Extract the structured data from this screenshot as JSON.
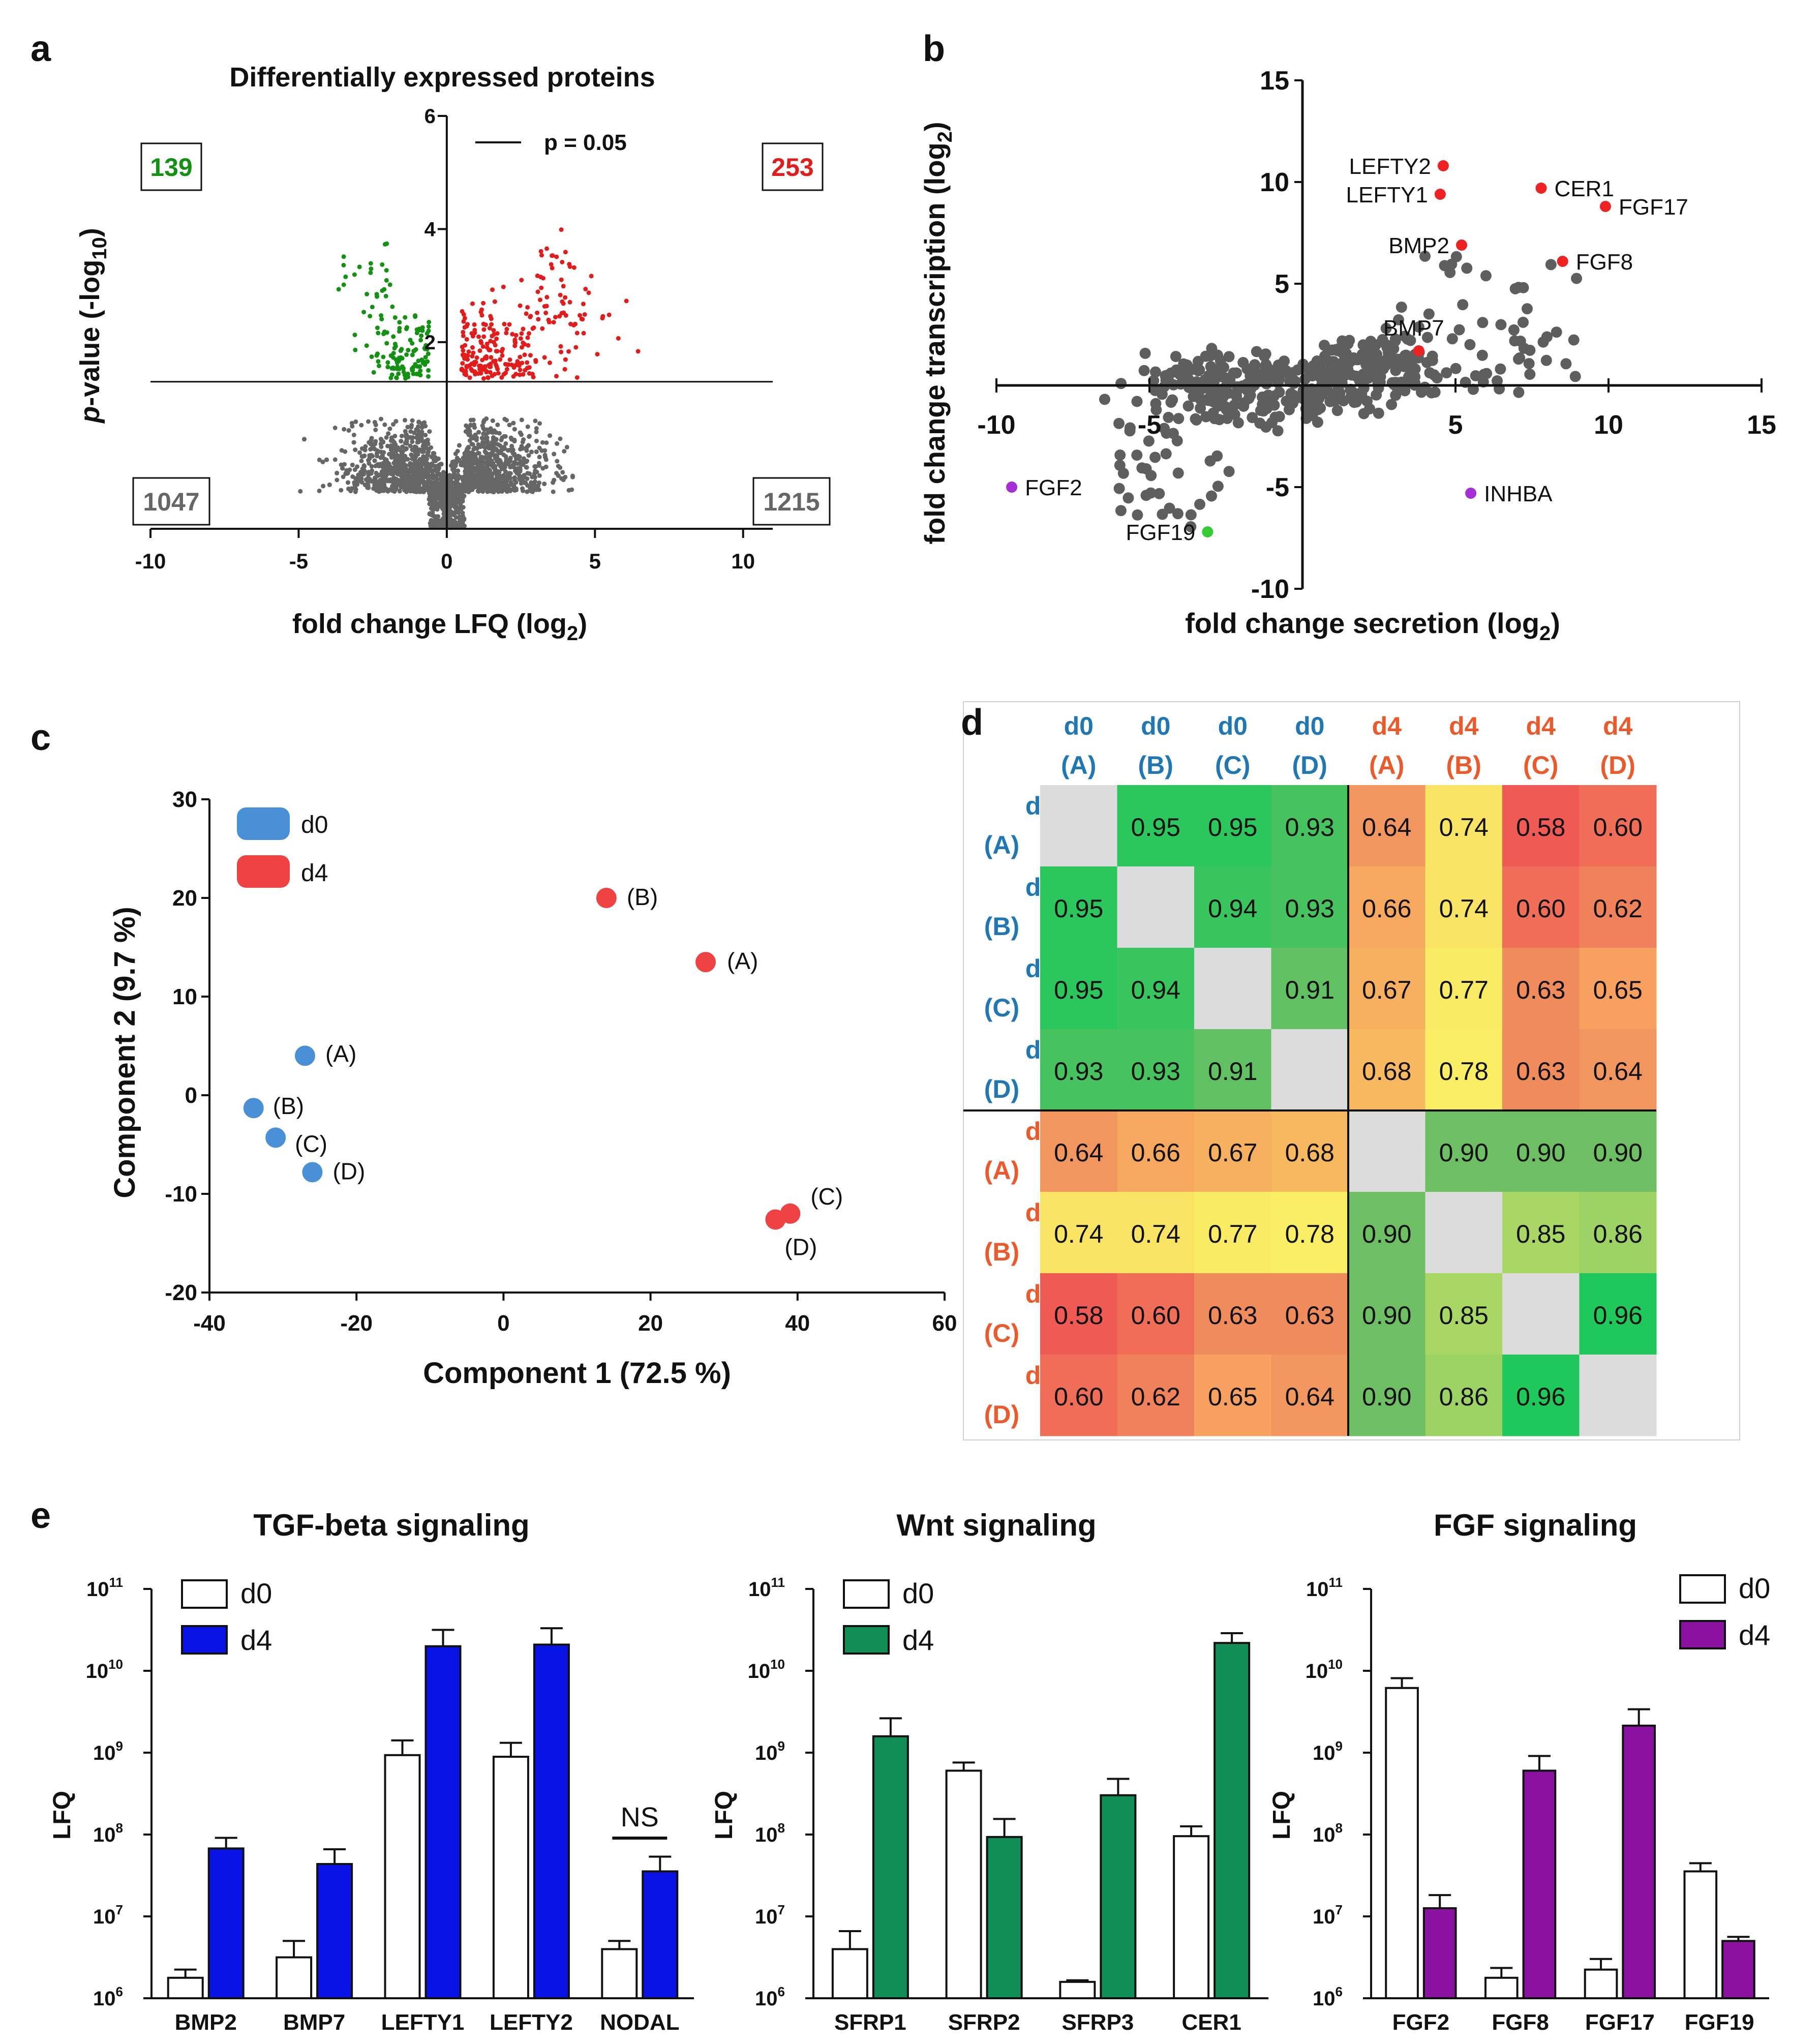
{
  "colors": {
    "green": "#129112",
    "red": "#e31b1b",
    "grey": "#666666",
    "blue_d0": "#4a90d6",
    "red_d4": "#ef4343",
    "tgf": "#0a13e6",
    "wnt": "#0f8f56",
    "fgf": "#8b11a0",
    "d0_label": "#1f77b4",
    "d4_label": "#ec5a2b"
  },
  "chart_data": [
    {
      "panel": "a",
      "type": "scatter",
      "title": "Differentially expressed proteins",
      "xlabel": "fold change LFQ (log",
      "xlabel_sub": "2",
      "xlabel_end": ")",
      "ylabel_p": "p",
      "ylabel": "-value (-log",
      "ylabel_sub": "10",
      "ylabel_end": ")",
      "xlim": [
        -10,
        11
      ],
      "ylim": [
        -1.3,
        6
      ],
      "xticks": [
        "-10",
        "-5",
        "0",
        "5",
        "10"
      ],
      "yticks": [
        "2",
        "4",
        "6"
      ],
      "threshold_label": "p = 0.05",
      "threshold_y": 1.3,
      "counts": {
        "up_sig": "253",
        "down_sig": "139",
        "down_ns": "1047",
        "up_ns": "1215"
      }
    },
    {
      "panel": "b",
      "type": "scatter",
      "xlabel": "fold change secretion (log",
      "xlabel_sub": "2",
      "xlabel_end": ")",
      "ylabel": "fold change transcription (log",
      "ylabel_sub": "2",
      "ylabel_end": ")",
      "xlim": [
        -10,
        15
      ],
      "ylim": [
        -10,
        15
      ],
      "xticks": [
        "-10",
        "-5",
        "5",
        "10",
        "15"
      ],
      "yticks": [
        "-10",
        "-5",
        "5",
        "10",
        "15"
      ],
      "highlighted": [
        {
          "label": "LEFTY2",
          "x": 4.6,
          "y": 10.8,
          "color": "red",
          "side": "left"
        },
        {
          "label": "LEFTY1",
          "x": 4.5,
          "y": 9.4,
          "color": "red",
          "side": "left"
        },
        {
          "label": "CER1",
          "x": 7.8,
          "y": 9.7,
          "color": "red",
          "side": "right"
        },
        {
          "label": "FGF17",
          "x": 9.9,
          "y": 8.8,
          "color": "red",
          "side": "right"
        },
        {
          "label": "BMP2",
          "x": 5.2,
          "y": 6.9,
          "color": "red",
          "side": "left"
        },
        {
          "label": "FGF8",
          "x": 8.5,
          "y": 6.1,
          "color": "red",
          "side": "right"
        },
        {
          "label": "BMP7",
          "x": 3.8,
          "y": 1.7,
          "color": "red",
          "side": "above"
        },
        {
          "label": "FGF2",
          "x": -9.5,
          "y": -5.0,
          "color": "purple",
          "side": "right"
        },
        {
          "label": "INHBA",
          "x": 5.5,
          "y": -5.3,
          "color": "purple",
          "side": "right"
        },
        {
          "label": "FGF19",
          "x": -3.1,
          "y": -7.2,
          "color": "lime",
          "side": "left"
        }
      ]
    },
    {
      "panel": "c",
      "type": "scatter",
      "xlabel": "Component 1 (72.5 %)",
      "ylabel": "Component 2 (9.7 %)",
      "xlim": [
        -40,
        60
      ],
      "ylim": [
        -20,
        30
      ],
      "xticks": [
        "-40",
        "-20",
        "0",
        "20",
        "40",
        "60"
      ],
      "yticks": [
        "-20",
        "-10",
        "0",
        "10",
        "20",
        "30"
      ],
      "legend": [
        "d0",
        "d4"
      ],
      "series": [
        {
          "name": "d0",
          "points": [
            {
              "label": "(A)",
              "x": -27,
              "y": 4
            },
            {
              "label": "(B)",
              "x": -34,
              "y": -1.3
            },
            {
              "label": "(C)",
              "x": -31,
              "y": -4.3
            },
            {
              "label": "(D)",
              "x": -26,
              "y": -7.8
            }
          ]
        },
        {
          "name": "d4",
          "points": [
            {
              "label": "(B)",
              "x": 14,
              "y": 20
            },
            {
              "label": "(A)",
              "x": 27.5,
              "y": 13.5
            },
            {
              "label": "(C)",
              "x": 39,
              "y": -12
            },
            {
              "label": "(D)",
              "x": 37,
              "y": -12.6
            }
          ]
        }
      ]
    },
    {
      "panel": "d",
      "type": "heatmap",
      "col_top": [
        "d0",
        "d0",
        "d0",
        "d0",
        "d4",
        "d4",
        "d4",
        "d4"
      ],
      "col_bot": [
        "(A)",
        "(B)",
        "(C)",
        "(D)",
        "(A)",
        "(B)",
        "(C)",
        "(D)"
      ],
      "matrix": [
        [
          null,
          "0.95",
          "0.95",
          "0.93",
          "0.64",
          "0.74",
          "0.58",
          "0.60"
        ],
        [
          "0.95",
          null,
          "0.94",
          "0.93",
          "0.66",
          "0.74",
          "0.60",
          "0.62"
        ],
        [
          "0.95",
          "0.94",
          null,
          "0.91",
          "0.67",
          "0.77",
          "0.63",
          "0.65"
        ],
        [
          "0.93",
          "0.93",
          "0.91",
          null,
          "0.68",
          "0.78",
          "0.63",
          "0.64"
        ],
        [
          "0.64",
          "0.66",
          "0.67",
          "0.68",
          null,
          "0.90",
          "0.90",
          "0.90"
        ],
        [
          "0.74",
          "0.74",
          "0.77",
          "0.78",
          "0.90",
          null,
          "0.85",
          "0.86"
        ],
        [
          "0.58",
          "0.60",
          "0.63",
          "0.63",
          "0.90",
          "0.85",
          null,
          "0.96"
        ],
        [
          "0.60",
          "0.62",
          "0.65",
          "0.64",
          "0.90",
          "0.86",
          "0.96",
          null
        ]
      ]
    },
    {
      "panel": "e1",
      "type": "bar",
      "title": "TGF-beta signaling",
      "ylabel": "LFQ",
      "log_range": [
        6,
        11
      ],
      "legend": [
        "d0",
        "d4"
      ],
      "color_key": "tgf",
      "legend_pos": "top-left",
      "categories": [
        "BMP2",
        "BMP7",
        "LEFTY1",
        "LEFTY2",
        "NODAL"
      ],
      "d0": [
        6.25,
        6.5,
        8.97,
        8.95,
        6.6
      ],
      "d0_err": [
        0.1,
        0.2,
        0.18,
        0.17,
        0.1
      ],
      "d4": [
        7.83,
        7.64,
        10.3,
        10.32,
        7.55
      ],
      "d4_err": [
        0.13,
        0.18,
        0.2,
        0.2,
        0.18
      ],
      "annotation": {
        "label": "NS",
        "category": "NODAL"
      }
    },
    {
      "panel": "e2",
      "type": "bar",
      "title": "Wnt signaling",
      "ylabel": "LFQ",
      "log_range": [
        6,
        11
      ],
      "legend": [
        "d0",
        "d4"
      ],
      "color_key": "wnt",
      "legend_pos": "top-left",
      "categories": [
        "SFRP1",
        "SFRP2",
        "SFRP3",
        "CER1"
      ],
      "d0": [
        6.6,
        8.78,
        6.2,
        7.98
      ],
      "d0_err": [
        0.22,
        0.1,
        0.02,
        0.12
      ],
      "d4": [
        9.2,
        7.97,
        8.48,
        10.34
      ],
      "d4_err": [
        0.22,
        0.22,
        0.2,
        0.12
      ]
    },
    {
      "panel": "e3",
      "type": "bar",
      "title": "FGF signaling",
      "ylabel": "LFQ",
      "log_range": [
        6,
        11
      ],
      "legend": [
        "d0",
        "d4"
      ],
      "color_key": "fgf",
      "legend_pos": "top-right",
      "categories": [
        "FGF2",
        "FGF8",
        "FGF17",
        "FGF19"
      ],
      "d0": [
        9.79,
        6.25,
        6.35,
        7.55
      ],
      "d0_err": [
        0.12,
        0.12,
        0.13,
        0.1
      ],
      "d4": [
        7.1,
        8.78,
        9.33,
        6.7
      ],
      "d4_err": [
        0.16,
        0.18,
        0.2,
        0.05
      ]
    }
  ],
  "panel_letters": [
    "a",
    "b",
    "c",
    "d",
    "e"
  ]
}
